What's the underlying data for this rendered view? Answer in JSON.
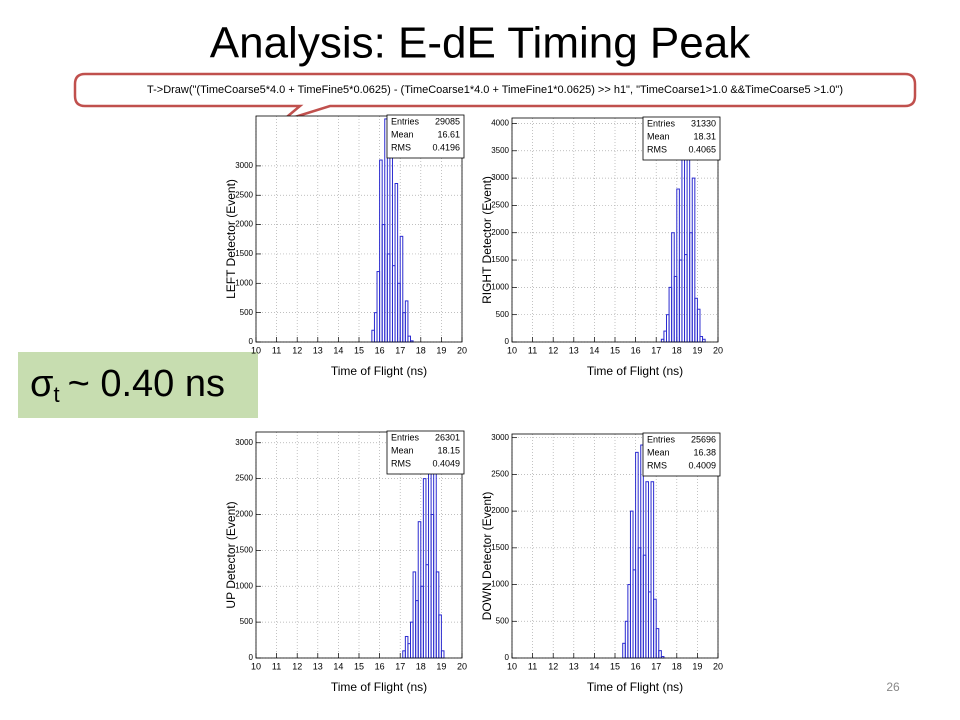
{
  "slide": {
    "title": "Analysis: E-dE Timing Peak",
    "code": "T->Draw(\"(TimeCoarse5*4.0 + TimeFine5*0.0625) - (TimeCoarse1*4.0 + TimeFine1*0.0625) >> h1\", \"TimeCoarse1>1.0 &&TimeCoarse5 >1.0\")",
    "sigma": "σ",
    "sigma_sub": "t",
    "sigma_value": "~ 0.40 ns",
    "page_number": "26"
  },
  "chart_data": [
    {
      "type": "histogram",
      "x_label": "Time of Flight (ns)",
      "y_label": "LEFT Detector (Event)",
      "color": "#2b2bd0",
      "grid": true,
      "xlim": [
        10,
        20
      ],
      "xticks": [
        10,
        11,
        12,
        13,
        14,
        15,
        16,
        17,
        18,
        19,
        20
      ],
      "ylim": [
        0,
        3850
      ],
      "yticks": [
        0,
        500,
        1000,
        1500,
        2000,
        2500,
        3000
      ],
      "bins": [
        15.5,
        15.625,
        15.75,
        15.875,
        16.0,
        16.125,
        16.25,
        16.375,
        16.5,
        16.625,
        16.75,
        16.875,
        17.0,
        17.125,
        17.25,
        17.375,
        17.5,
        17.625,
        17.75
      ],
      "values": [
        0,
        200,
        500,
        1200,
        3100,
        2000,
        3800,
        1500,
        3700,
        1300,
        2700,
        1000,
        1800,
        500,
        700,
        100,
        20,
        0
      ],
      "stats": [
        {
          "label": "Entries",
          "value": 29085
        },
        {
          "label": "Mean",
          "value": 16.61
        },
        {
          "label": "RMS",
          "value": 0.4196
        }
      ]
    },
    {
      "type": "histogram",
      "x_label": "Time of Flight (ns)",
      "y_label": "RIGHT Detector (Event)",
      "color": "#2b2bd0",
      "grid": true,
      "xlim": [
        10,
        20
      ],
      "xticks": [
        10,
        11,
        12,
        13,
        14,
        15,
        16,
        17,
        18,
        19,
        20
      ],
      "ylim": [
        0,
        4100
      ],
      "yticks": [
        0,
        500,
        1000,
        1500,
        2000,
        2500,
        3000,
        3500,
        4000
      ],
      "bins": [
        17.25,
        17.375,
        17.5,
        17.625,
        17.75,
        17.875,
        18.0,
        18.125,
        18.25,
        18.375,
        18.5,
        18.625,
        18.75,
        18.875,
        19.0,
        19.125,
        19.25,
        19.375,
        19.5
      ],
      "values": [
        50,
        200,
        500,
        1000,
        2000,
        1200,
        2800,
        1500,
        3500,
        1600,
        4100,
        2000,
        3000,
        800,
        600,
        100,
        50,
        0
      ],
      "stats": [
        {
          "label": "Entries",
          "value": 31330
        },
        {
          "label": "Mean",
          "value": 18.31
        },
        {
          "label": "RMS",
          "value": 0.4065
        }
      ]
    },
    {
      "type": "histogram",
      "x_label": "Time of Flight (ns)",
      "y_label": "UP Detector (Event)",
      "color": "#2b2bd0",
      "grid": true,
      "xlim": [
        10,
        20
      ],
      "xticks": [
        10,
        11,
        12,
        13,
        14,
        15,
        16,
        17,
        18,
        19,
        20
      ],
      "ylim": [
        0,
        3150
      ],
      "yticks": [
        0,
        500,
        1000,
        1500,
        2000,
        2500,
        3000
      ],
      "bins": [
        17.0,
        17.125,
        17.25,
        17.375,
        17.5,
        17.625,
        17.75,
        17.875,
        18.0,
        18.125,
        18.25,
        18.375,
        18.5,
        18.625,
        18.75,
        18.875,
        19.0,
        19.125,
        19.25
      ],
      "values": [
        0,
        100,
        300,
        200,
        500,
        1200,
        800,
        1900,
        1000,
        2500,
        1300,
        2900,
        2000,
        2800,
        1200,
        600,
        100,
        0
      ],
      "stats": [
        {
          "label": "Entries",
          "value": 26301
        },
        {
          "label": "Mean",
          "value": 18.15
        },
        {
          "label": "RMS",
          "value": 0.4049
        }
      ]
    },
    {
      "type": "histogram",
      "x_label": "Time of Flight (ns)",
      "y_label": "DOWN Detector (Event)",
      "color": "#2b2bd0",
      "grid": true,
      "xlim": [
        10,
        20
      ],
      "xticks": [
        10,
        11,
        12,
        13,
        14,
        15,
        16,
        17,
        18,
        19,
        20
      ],
      "ylim": [
        0,
        3050
      ],
      "yticks": [
        0,
        500,
        1000,
        1500,
        2000,
        2500,
        3000
      ],
      "bins": [
        15.25,
        15.375,
        15.5,
        15.625,
        15.75,
        15.875,
        16.0,
        16.125,
        16.25,
        16.375,
        16.5,
        16.625,
        16.75,
        16.875,
        17.0,
        17.125,
        17.25,
        17.375,
        17.5
      ],
      "values": [
        0,
        200,
        500,
        1000,
        2000,
        1200,
        2800,
        1500,
        2900,
        1400,
        2400,
        900,
        2400,
        800,
        400,
        100,
        20,
        0
      ],
      "stats": [
        {
          "label": "Entries",
          "value": 25696
        },
        {
          "label": "Mean",
          "value": 16.38
        },
        {
          "label": "RMS",
          "value": 0.4009
        }
      ]
    }
  ]
}
